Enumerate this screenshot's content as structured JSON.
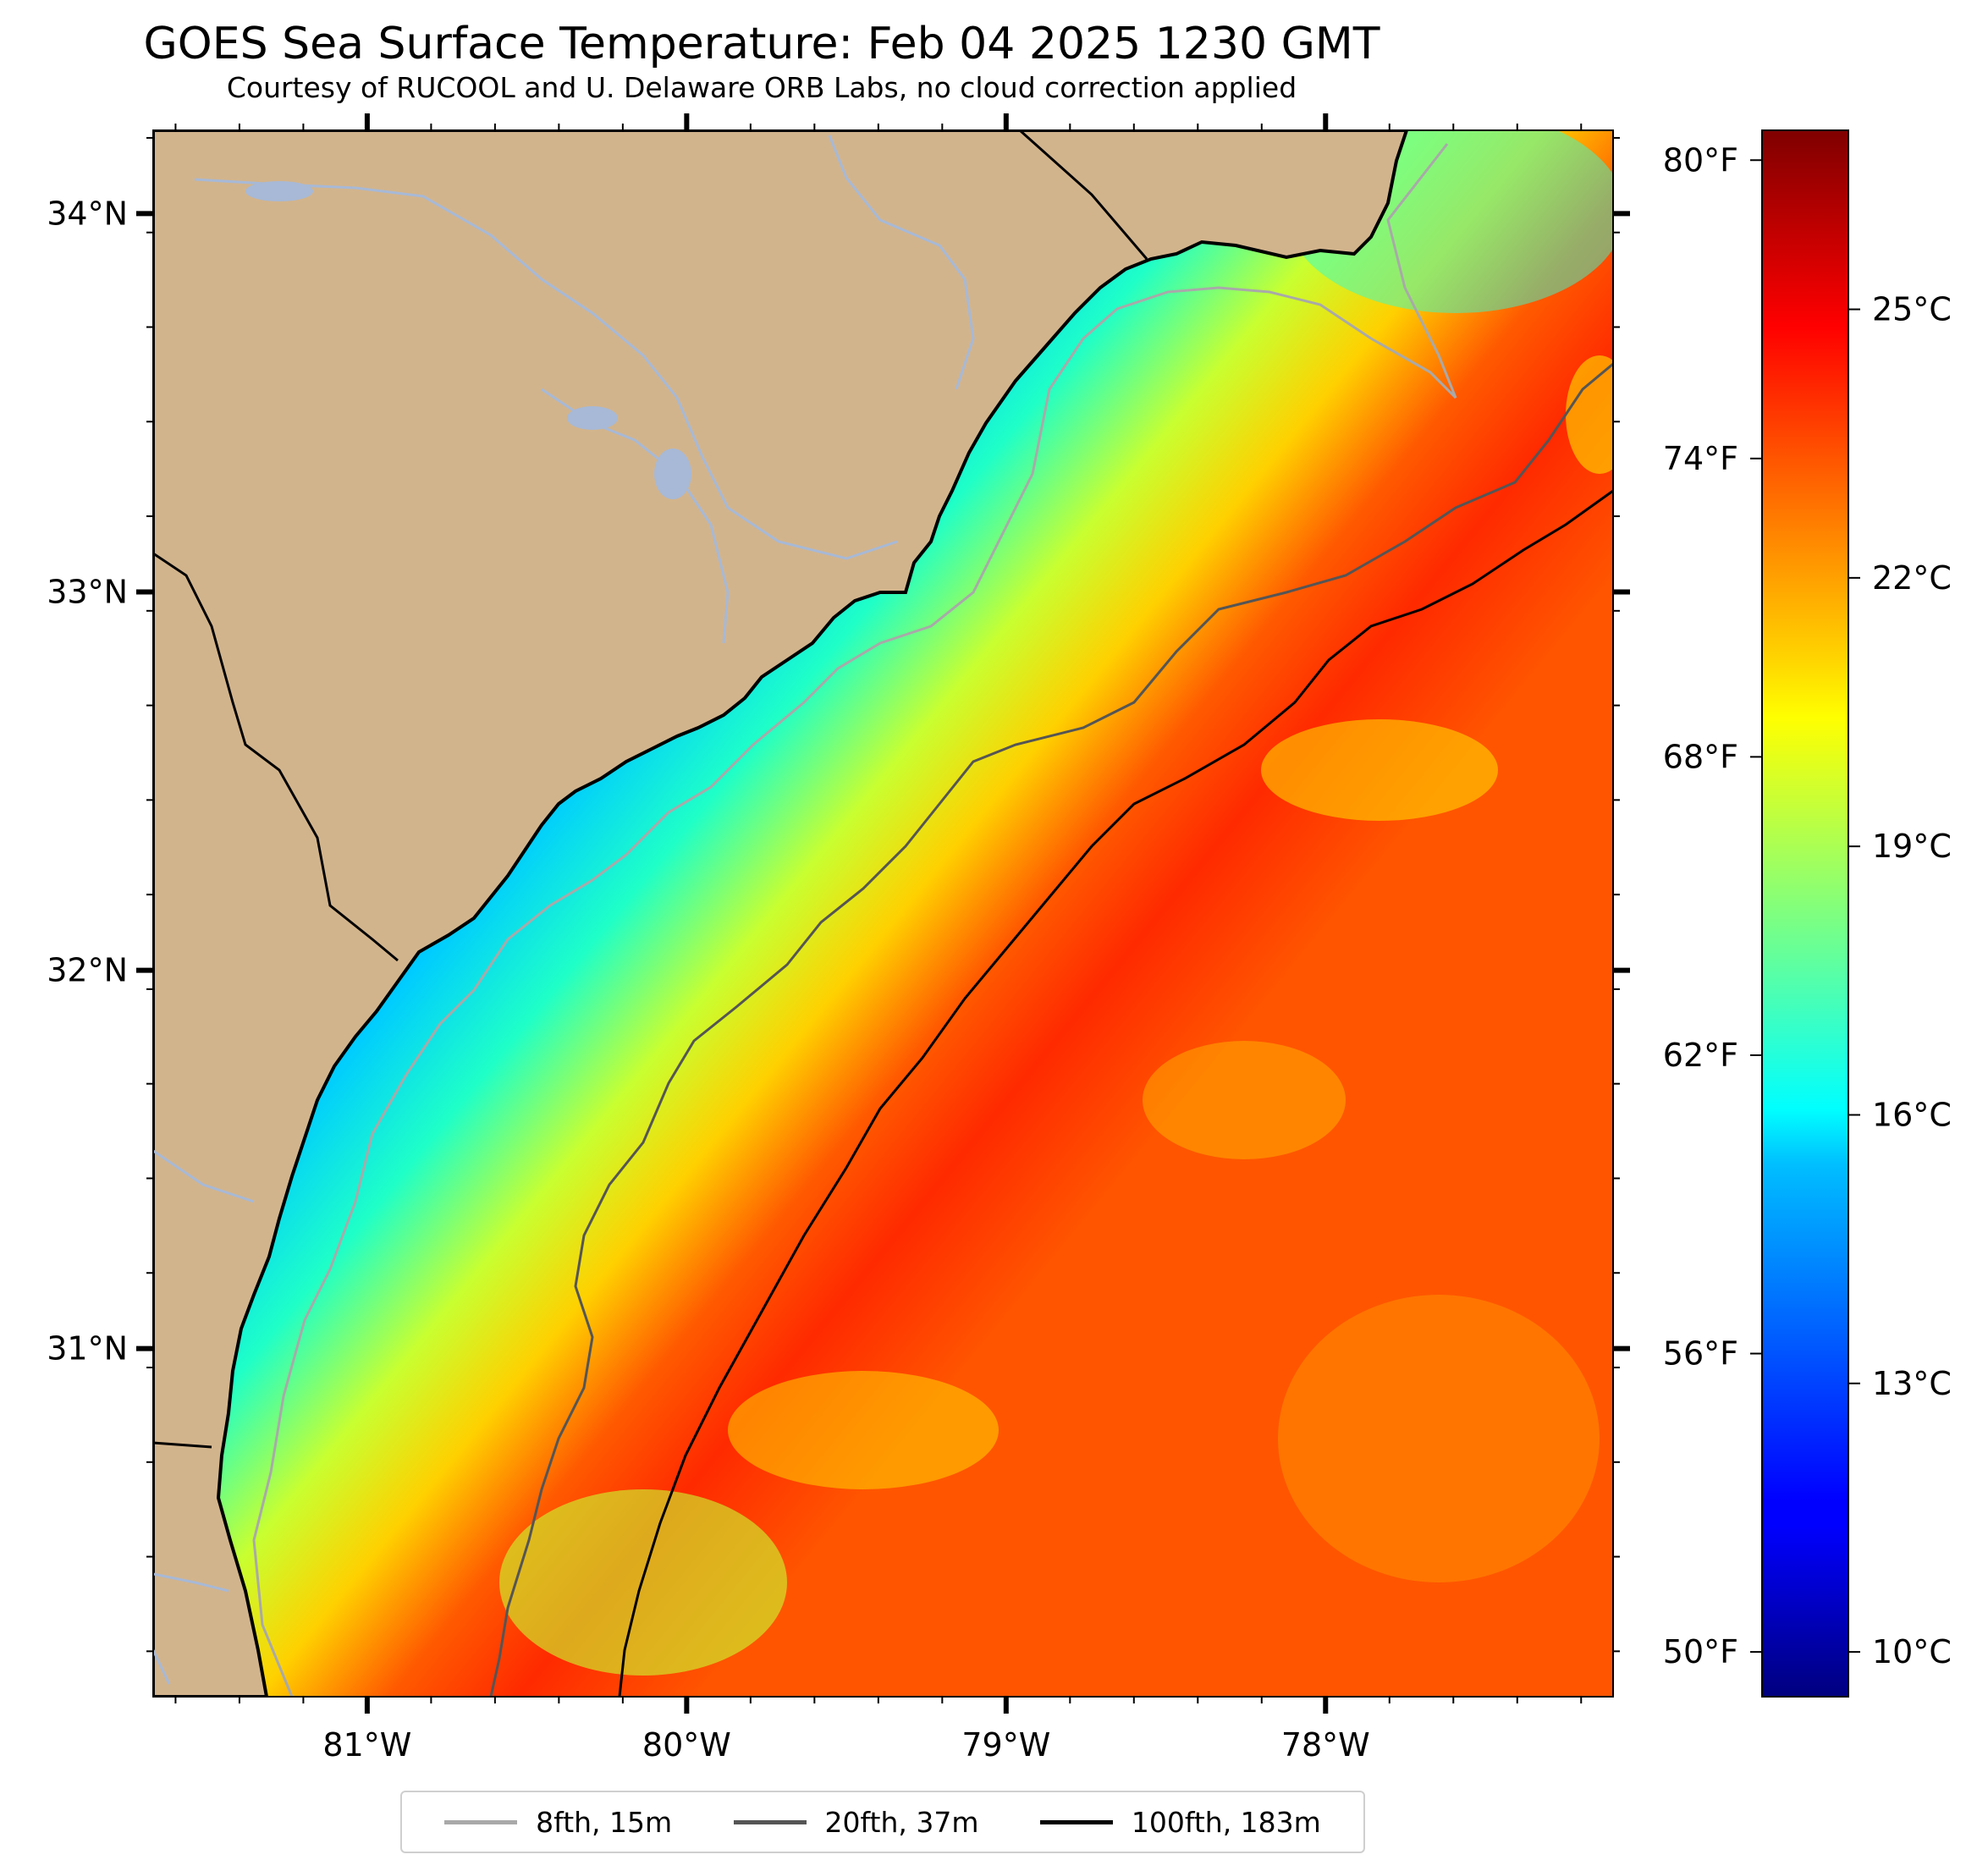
{
  "title": "GOES Sea Surface Temperature: Feb 04 2025 1230 GMT",
  "subtitle": "Courtesy of RUCOOL and U. Delaware ORB Labs, no cloud correction applied",
  "map": {
    "lon_range": [
      -81.67,
      -77.1
    ],
    "lat_range": [
      30.08,
      34.22
    ],
    "land_color": "#d2b48c",
    "coast_color": "#000000",
    "river_color": "#a7b9d6",
    "lon_ticks": [
      {
        "value": -81,
        "label": "81°W"
      },
      {
        "value": -80,
        "label": "80°W"
      },
      {
        "value": -79,
        "label": "79°W"
      },
      {
        "value": -78,
        "label": "78°W"
      }
    ],
    "lat_ticks": [
      {
        "value": 34,
        "label": "34°N"
      },
      {
        "value": 33,
        "label": "33°N"
      },
      {
        "value": 32,
        "label": "32°N"
      },
      {
        "value": 31,
        "label": "31°N"
      }
    ]
  },
  "colorbar": {
    "colormap": "jet",
    "range_c": [
      9.5,
      27.0
    ],
    "celsius_ticks": [
      {
        "value": 25,
        "label": "25°C"
      },
      {
        "value": 22,
        "label": "22°C"
      },
      {
        "value": 19,
        "label": "19°C"
      },
      {
        "value": 16,
        "label": "16°C"
      },
      {
        "value": 13,
        "label": "13°C"
      },
      {
        "value": 10,
        "label": "10°C"
      }
    ],
    "fahrenheit_ticks": [
      {
        "value": 80,
        "label": "80°F"
      },
      {
        "value": 74,
        "label": "74°F"
      },
      {
        "value": 68,
        "label": "68°F"
      },
      {
        "value": 62,
        "label": "62°F"
      },
      {
        "value": 56,
        "label": "56°F"
      },
      {
        "value": 50,
        "label": "50°F"
      }
    ]
  },
  "legend": {
    "items": [
      {
        "label": "8fth, 15m",
        "color": "#a9a9a9"
      },
      {
        "label": "20fth, 37m",
        "color": "#555555"
      },
      {
        "label": "100fth, 183m",
        "color": "#000000"
      }
    ]
  }
}
